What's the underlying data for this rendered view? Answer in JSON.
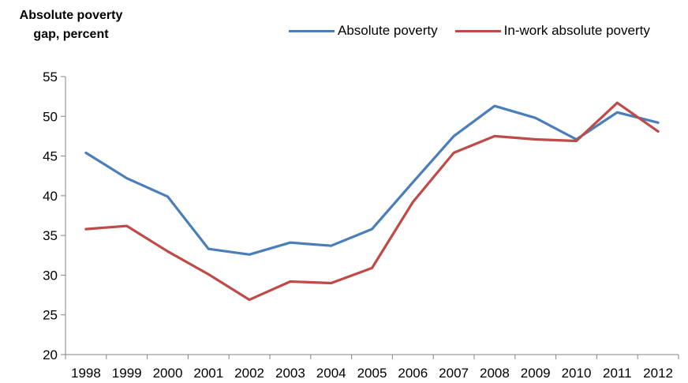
{
  "chart_data": {
    "type": "line",
    "ylabel": "Absolute poverty gap, percent",
    "ylabel_lines": [
      "Absolute poverty",
      "gap, percent"
    ],
    "xlabel": "",
    "ylim": [
      20,
      55
    ],
    "yticks": [
      20,
      25,
      30,
      35,
      40,
      45,
      50,
      55
    ],
    "categories": [
      "1998",
      "1999",
      "2000",
      "2001",
      "2002",
      "2003",
      "2004",
      "2005",
      "2006",
      "2007",
      "2008",
      "2009",
      "2010",
      "2011",
      "2012"
    ],
    "series": [
      {
        "name": "Absolute poverty",
        "color": "#4a7ebb",
        "values": [
          45.4,
          42.2,
          39.9,
          33.3,
          32.6,
          34.1,
          33.7,
          35.8,
          41.7,
          47.5,
          51.3,
          49.8,
          47.1,
          50.5,
          49.2
        ]
      },
      {
        "name": "In-work absolute poverty",
        "color": "#be4b48",
        "values": [
          35.8,
          36.2,
          33.0,
          30.1,
          26.9,
          29.2,
          29.0,
          30.9,
          39.2,
          45.4,
          47.5,
          47.1,
          46.9,
          51.7,
          48.1
        ]
      }
    ],
    "grid": false,
    "legend_position": "top-right"
  }
}
